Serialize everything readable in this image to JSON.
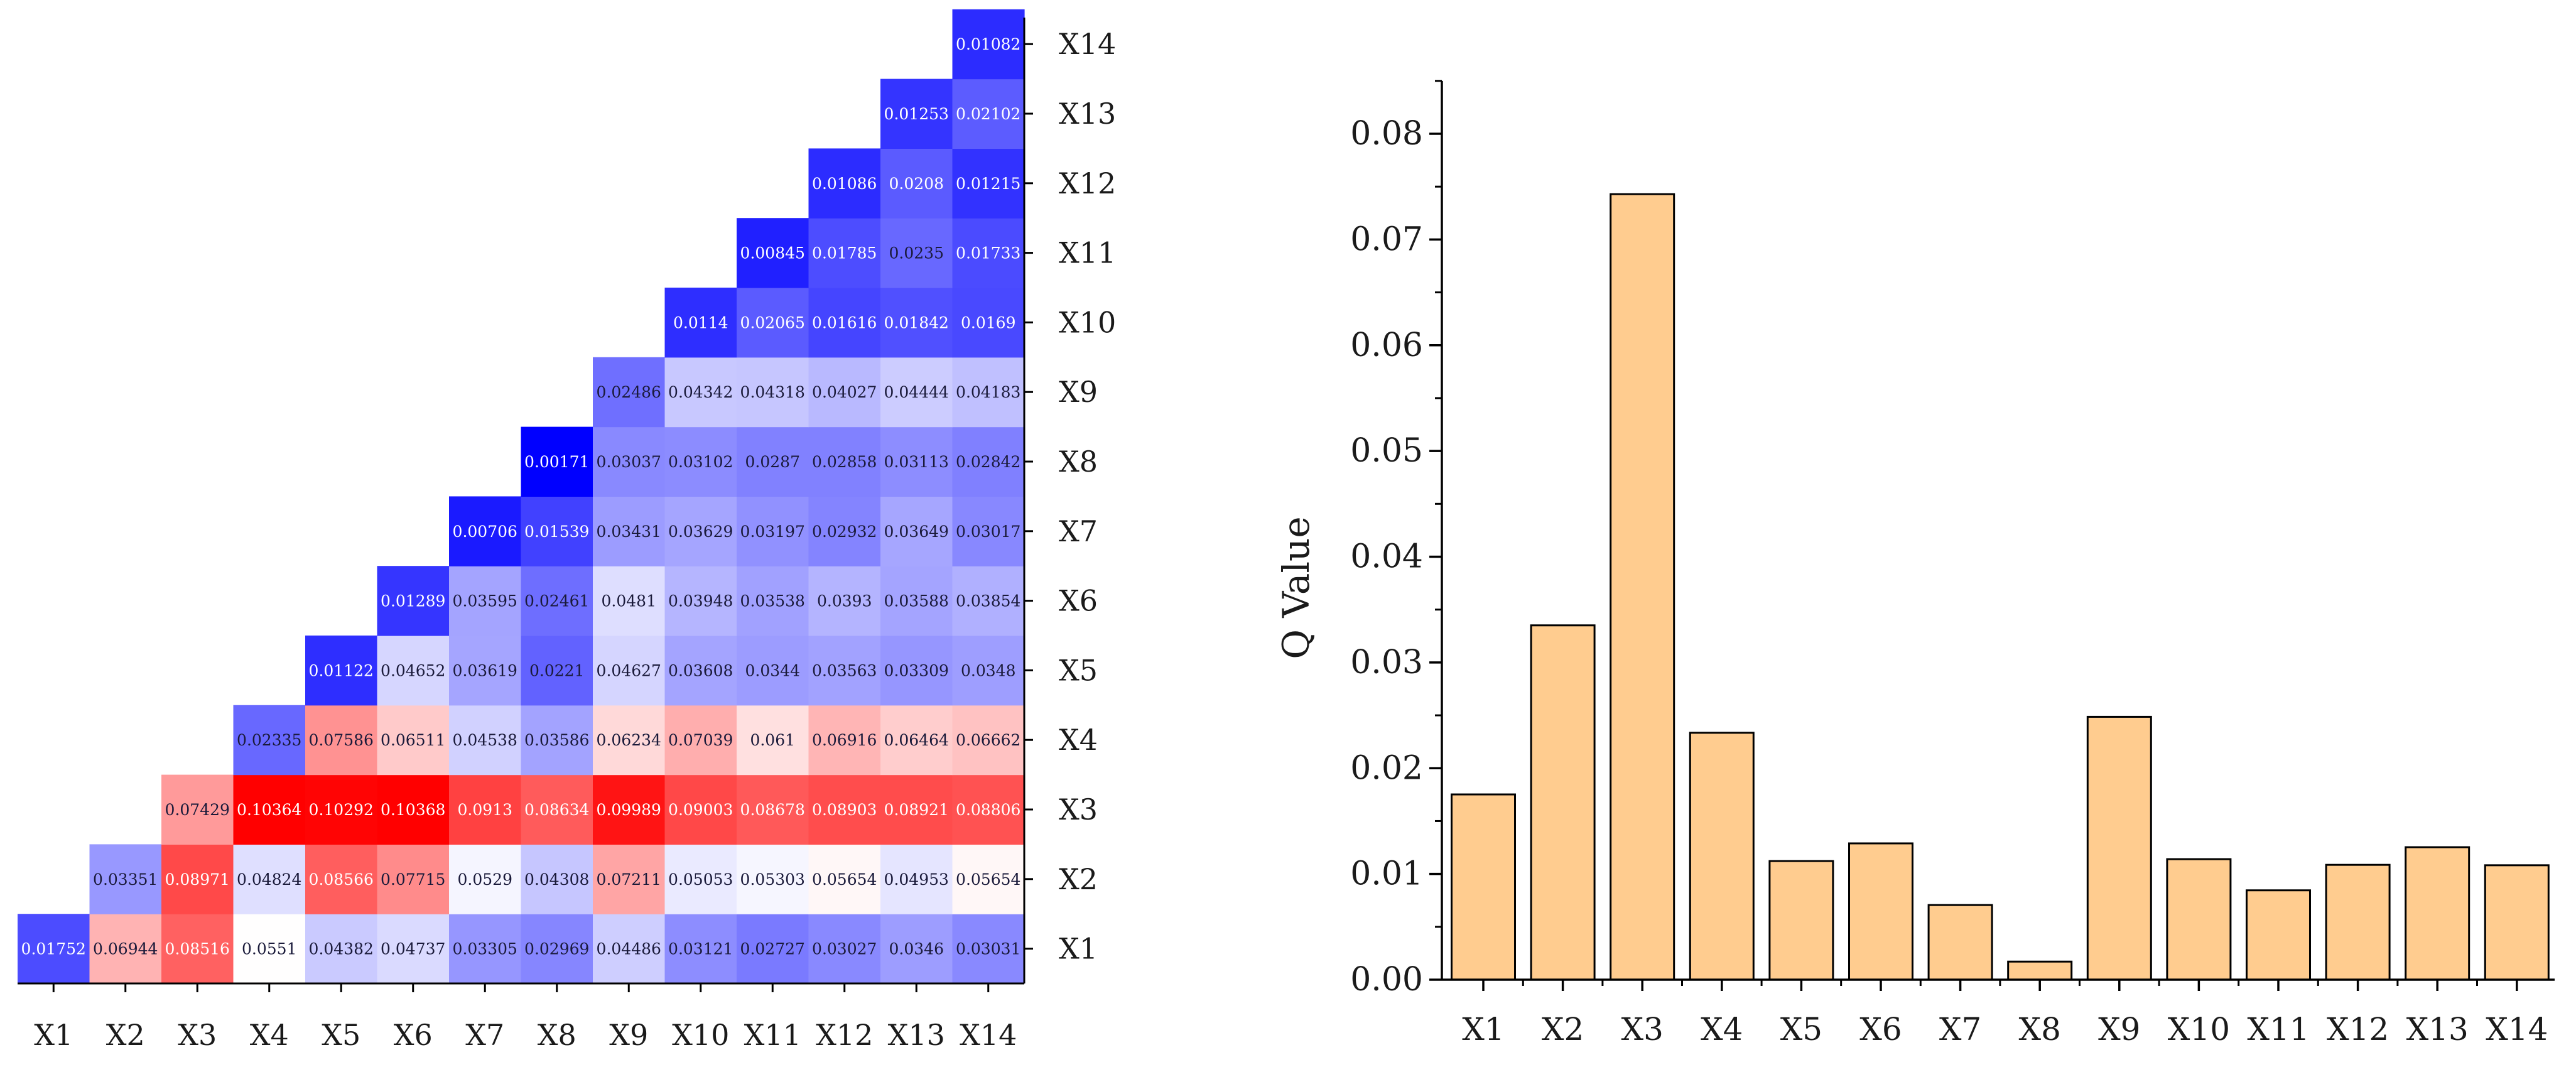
{
  "chart_data": [
    {
      "type": "heatmap",
      "title": "",
      "row_labels": [
        "X1",
        "X2",
        "X3",
        "X4",
        "X5",
        "X6",
        "X7",
        "X8",
        "X9",
        "X10",
        "X11",
        "X12",
        "X13",
        "X14"
      ],
      "col_labels": [
        "X1",
        "X2",
        "X3",
        "X4",
        "X5",
        "X6",
        "X7",
        "X8",
        "X9",
        "X10",
        "X11",
        "X12",
        "X13",
        "X14"
      ],
      "matrix": [
        [
          "0.01752",
          "0.06944",
          "0.08516",
          "0.0551",
          "0.04382",
          "0.04737",
          "0.03305",
          "0.02969",
          "0.04486",
          "0.03121",
          "0.02727",
          "0.03027",
          "0.0346",
          "0.03031"
        ],
        [
          null,
          "0.03351",
          "0.08971",
          "0.04824",
          "0.08566",
          "0.07715",
          "0.0529",
          "0.04308",
          "0.07211",
          "0.05053",
          "0.05303",
          "0.05654",
          "0.04953",
          "0.05654"
        ],
        [
          null,
          null,
          "0.07429",
          "0.10364",
          "0.10292",
          "0.10368",
          "0.0913",
          "0.08634",
          "0.09989",
          "0.09003",
          "0.08678",
          "0.08903",
          "0.08921",
          "0.08806"
        ],
        [
          null,
          null,
          null,
          "0.02335",
          "0.07586",
          "0.06511",
          "0.04538",
          "0.03586",
          "0.06234",
          "0.07039",
          "0.061",
          "0.06916",
          "0.06464",
          "0.06662"
        ],
        [
          null,
          null,
          null,
          null,
          "0.01122",
          "0.04652",
          "0.03619",
          "0.0221",
          "0.04627",
          "0.03608",
          "0.0344",
          "0.03563",
          "0.03309",
          "0.0348"
        ],
        [
          null,
          null,
          null,
          null,
          null,
          "0.01289",
          "0.03595",
          "0.02461",
          "0.0481",
          "0.03948",
          "0.03538",
          "0.0393",
          "0.03588",
          "0.03854"
        ],
        [
          null,
          null,
          null,
          null,
          null,
          null,
          "0.00706",
          "0.01539",
          "0.03431",
          "0.03629",
          "0.03197",
          "0.02932",
          "0.03649",
          "0.03017"
        ],
        [
          null,
          null,
          null,
          null,
          null,
          null,
          null,
          "0.00171",
          "0.03037",
          "0.03102",
          "0.0287",
          "0.02858",
          "0.03113",
          "0.02842"
        ],
        [
          null,
          null,
          null,
          null,
          null,
          null,
          null,
          null,
          "0.02486",
          "0.04342",
          "0.04318",
          "0.04027",
          "0.04444",
          "0.04183"
        ],
        [
          null,
          null,
          null,
          null,
          null,
          null,
          null,
          null,
          null,
          "0.0114",
          "0.02065",
          "0.01616",
          "0.01842",
          "0.0169"
        ],
        [
          null,
          null,
          null,
          null,
          null,
          null,
          null,
          null,
          null,
          null,
          "0.00845",
          "0.01785",
          "0.0235",
          "0.01733"
        ],
        [
          null,
          null,
          null,
          null,
          null,
          null,
          null,
          null,
          null,
          null,
          null,
          "0.01086",
          "0.0208",
          "0.01215"
        ],
        [
          null,
          null,
          null,
          null,
          null,
          null,
          null,
          null,
          null,
          null,
          null,
          null,
          "0.01253",
          "0.02102"
        ],
        [
          null,
          null,
          null,
          null,
          null,
          null,
          null,
          null,
          null,
          null,
          null,
          null,
          null,
          "0.01082"
        ]
      ],
      "color_scale": {
        "low": "#0000ff",
        "mid": "#ffffff",
        "high": "#ff0000",
        "min_value": 0.00171,
        "mid_value": 0.055,
        "max_value": 0.10368
      }
    },
    {
      "type": "bar",
      "title": "",
      "xlabel": "",
      "ylabel": "Q Value",
      "categories": [
        "X1",
        "X2",
        "X3",
        "X4",
        "X5",
        "X6",
        "X7",
        "X8",
        "X9",
        "X10",
        "X11",
        "X12",
        "X13",
        "X14"
      ],
      "values": [
        0.01752,
        0.03351,
        0.07429,
        0.02335,
        0.01122,
        0.01289,
        0.00706,
        0.00171,
        0.02486,
        0.0114,
        0.00845,
        0.01086,
        0.01253,
        0.01082
      ],
      "ylim": [
        0,
        0.085
      ],
      "yticks": [
        "0.00",
        "0.01",
        "0.02",
        "0.03",
        "0.04",
        "0.05",
        "0.06",
        "0.07",
        "0.08"
      ],
      "bar_color": "#ffcc8f",
      "edge_color": "#000000"
    }
  ]
}
